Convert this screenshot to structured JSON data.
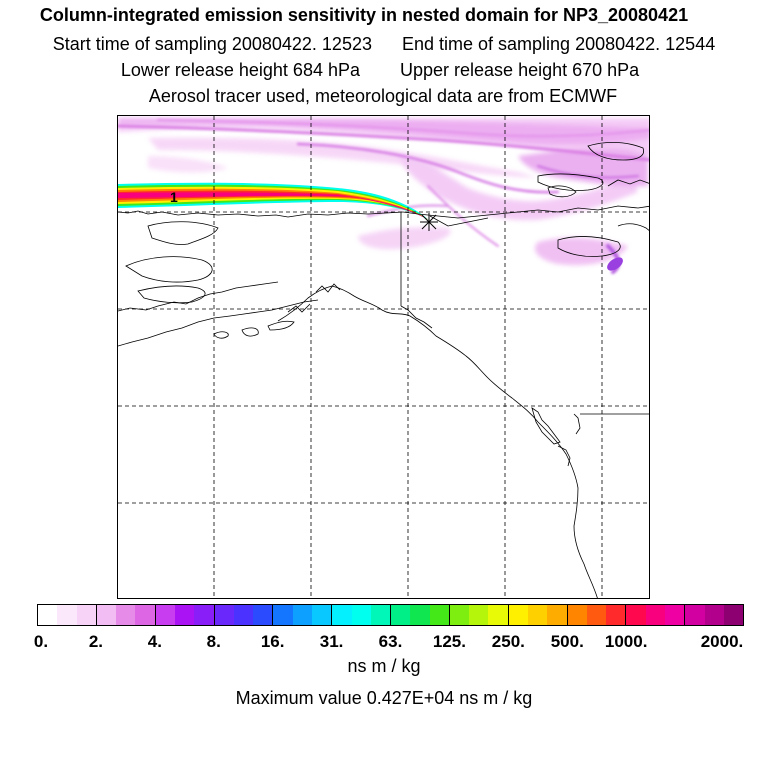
{
  "titles": {
    "line1": "Column-integrated emission sensitivity in nested domain for NP3_20080421",
    "start_label": "Start time of sampling 20080422. 12523",
    "end_label": "End time of sampling 20080422. 12544",
    "lower_label": "Lower release height  684 hPa",
    "upper_label": "Upper release height  670 hPa",
    "line4": "Aerosol tracer used, meteorological data are from ECMWF"
  },
  "map": {
    "marker_label": "1"
  },
  "colorbar": {
    "colors": [
      "#ffffff",
      "#fbe9fb",
      "#f7d3f7",
      "#f2bdf2",
      "#e78be9",
      "#dc66e4",
      "#c83df0",
      "#aa14f5",
      "#8a1ef8",
      "#6a28fb",
      "#4b32fe",
      "#2a4cfe",
      "#1475ff",
      "#0ea0ff",
      "#09c8ff",
      "#04f0ff",
      "#00ffee",
      "#00f7b8",
      "#00ef86",
      "#10e64f",
      "#44e717",
      "#7eed10",
      "#b5f40b",
      "#e8fa06",
      "#fff000",
      "#ffd000",
      "#ffac00",
      "#ff8400",
      "#ff5a10",
      "#ff2a2c",
      "#ff084e",
      "#f8007e",
      "#ef00a2",
      "#d200a0",
      "#b2008c",
      "#8c0072"
    ],
    "ticks": [
      "0.",
      "2.",
      "4.",
      "8.",
      "16.",
      "31.",
      "63.",
      "125.",
      "250.",
      "500.",
      "1000.",
      "2000."
    ],
    "units": "ns m / kg",
    "max_value": "Maximum value  0.427E+04 ns m / kg"
  }
}
